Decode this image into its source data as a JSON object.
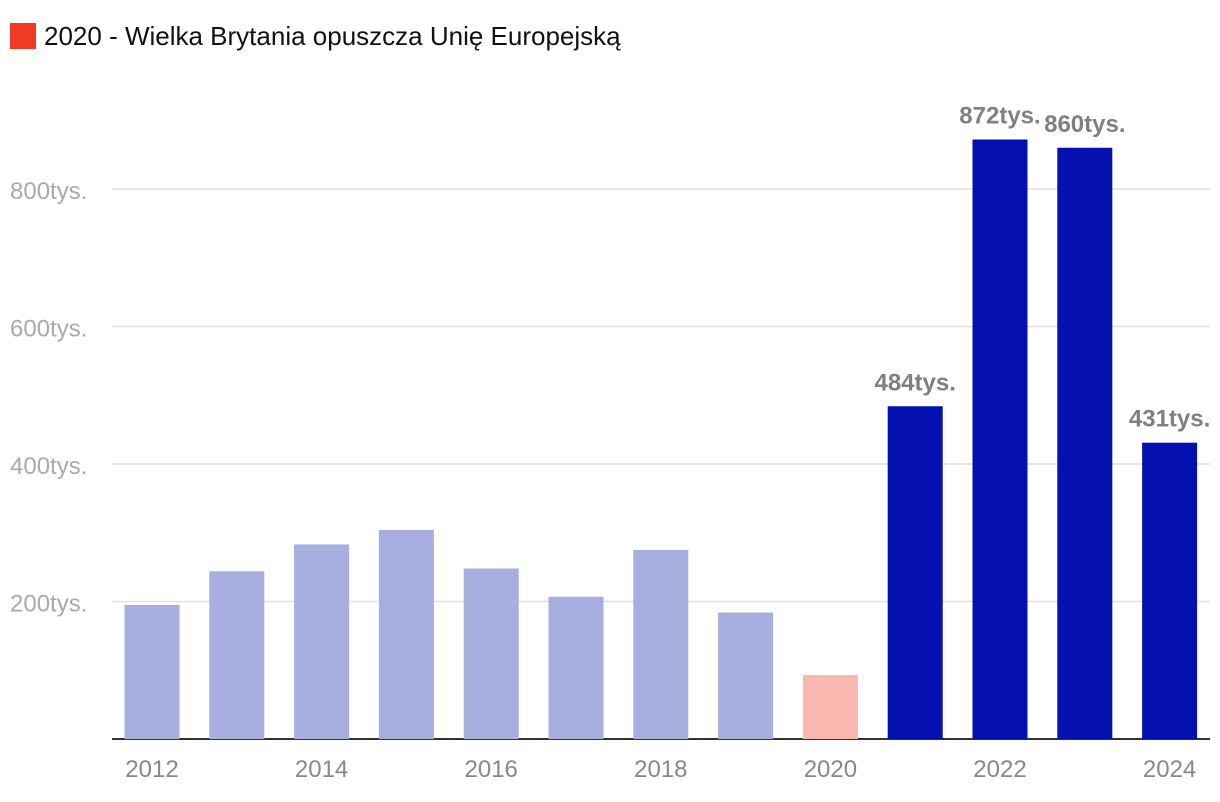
{
  "legend": {
    "label": "2020 - Wielka Brytania opuszcza Unię Europejską",
    "color": "#f03a24"
  },
  "colors": {
    "past": "#a9aee0",
    "highlight": "#f8b8b0",
    "recent": "#0510b0",
    "grid": "#e2e2e2",
    "axis": "#333333"
  },
  "chart_data": {
    "type": "bar",
    "title": "",
    "xlabel": "",
    "ylabel": "",
    "ylim": [
      0,
      900000
    ],
    "y_ticks": [
      {
        "value": 200000,
        "label": "200tys."
      },
      {
        "value": 400000,
        "label": "400tys."
      },
      {
        "value": 600000,
        "label": "600tys."
      },
      {
        "value": 800000,
        "label": "800tys."
      }
    ],
    "x_tick_labels": [
      "2012",
      "2014",
      "2016",
      "2018",
      "2020",
      "2022",
      "2024"
    ],
    "categories": [
      "2012",
      "2013",
      "2014",
      "2015",
      "2016",
      "2017",
      "2018",
      "2019",
      "2020",
      "2021",
      "2022",
      "2023",
      "2024"
    ],
    "values": [
      195000,
      244000,
      283000,
      304000,
      248000,
      207000,
      275000,
      184000,
      93000,
      484000,
      872000,
      860000,
      431000
    ],
    "bar_groups": [
      "past",
      "past",
      "past",
      "past",
      "past",
      "past",
      "past",
      "past",
      "highlight",
      "recent",
      "recent",
      "recent",
      "recent"
    ],
    "data_labels": [
      "",
      "",
      "",
      "",
      "",
      "",
      "",
      "",
      "",
      "484tys.",
      "872tys.",
      "860tys.",
      "431tys."
    ]
  }
}
